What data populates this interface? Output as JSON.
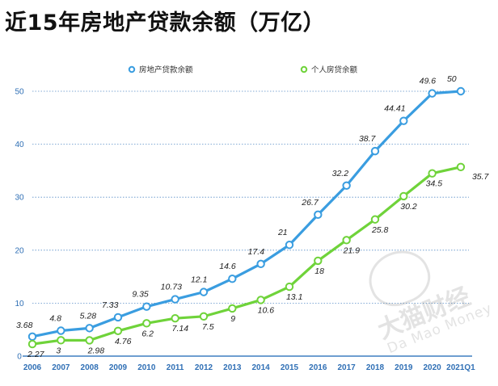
{
  "title": "近15年房地产贷款余额（万亿）",
  "watermark": {
    "cn": "大猫财经",
    "en": "Da Mao Money"
  },
  "colors": {
    "series1": "#3a9de0",
    "series2": "#6fd33a",
    "axis_text": "#2f6fb5",
    "grid": "#5b8fc8",
    "label": "#222222",
    "baseline": "#3f7fc0"
  },
  "chart_data": {
    "type": "line",
    "title": "近15年房地产贷款余额（万亿）",
    "categories": [
      "2006",
      "2007",
      "2008",
      "2009",
      "2010",
      "2011",
      "2012",
      "2013",
      "2014",
      "2015",
      "2016",
      "2017",
      "2018",
      "2019",
      "2020",
      "2021Q1"
    ],
    "ylim": [
      0,
      50
    ],
    "yticks": [
      0,
      10,
      20,
      30,
      40,
      50
    ],
    "grid": true,
    "legend_position": "top",
    "series": [
      {
        "name": "房地产贷款余额",
        "values": [
          3.68,
          4.8,
          5.28,
          7.33,
          9.35,
          10.73,
          12.1,
          14.6,
          17.4,
          21,
          26.7,
          32.2,
          38.7,
          44.41,
          49.6,
          50
        ],
        "labels": [
          "3.68",
          "4.8",
          "5.28",
          "7.33",
          "9.35",
          "10.73",
          "12.1",
          "14.6",
          "17.4",
          "21",
          "26.7",
          "32.2",
          "38.7",
          "44.41",
          "49.6",
          "50"
        ]
      },
      {
        "name": "个人房贷余额",
        "values": [
          2.27,
          3,
          2.98,
          4.76,
          6.2,
          7.14,
          7.5,
          9,
          10.6,
          13.1,
          18,
          21.9,
          25.8,
          30.2,
          34.5,
          35.7
        ],
        "labels": [
          "2.27",
          "3",
          "2.98",
          "4.76",
          "6.2",
          "7.14",
          "7.5",
          "9",
          "10.6",
          "13.1",
          "18",
          "21.9",
          "25.8",
          "30.2",
          "34.5",
          "35.7"
        ]
      }
    ]
  }
}
